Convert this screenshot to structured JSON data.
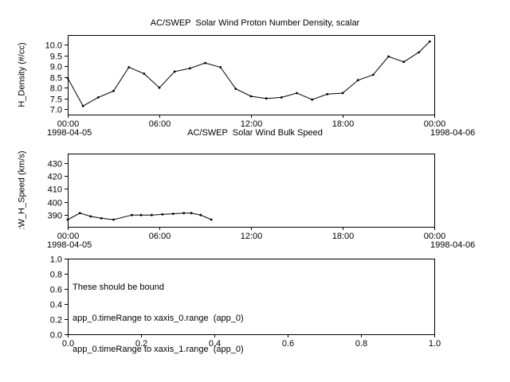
{
  "figure": {
    "bg": "#ffffff",
    "fg": "#000000"
  },
  "chart_data": [
    {
      "type": "line",
      "title": "AC/SWEP  Solar Wind Proton Number Density, scalar",
      "ylabel": "H_Density (#/cc)",
      "xlabel_left": "1998-04-05",
      "xlabel_right": "1998-04-06",
      "xlim": [
        0,
        24
      ],
      "ylim": [
        6.75,
        10.45
      ],
      "grid": false,
      "marker": "dot",
      "xticks": {
        "values": [
          0,
          6,
          12,
          18,
          24
        ],
        "labels": [
          "00:00",
          "06:00",
          "12:00",
          "18:00",
          "00:00"
        ]
      },
      "yticks": {
        "values": [
          7.0,
          7.5,
          8.0,
          8.5,
          9.0,
          9.5,
          10.0
        ],
        "labels": [
          "7.0",
          "7.5",
          "8.0",
          "8.5",
          "9.0",
          "9.5",
          "10.0"
        ]
      },
      "x": [
        0,
        1,
        2,
        3,
        4,
        5,
        6,
        7,
        8,
        9,
        10,
        11,
        12,
        13,
        14,
        15,
        16,
        17,
        18,
        19,
        20,
        21,
        22,
        23,
        23.7
      ],
      "values": [
        8.45,
        7.15,
        7.55,
        7.85,
        8.95,
        8.65,
        8.0,
        8.75,
        8.9,
        9.15,
        8.95,
        7.95,
        7.6,
        7.5,
        7.55,
        7.75,
        7.45,
        7.7,
        7.75,
        8.35,
        8.6,
        9.45,
        9.2,
        9.65,
        10.15
      ]
    },
    {
      "type": "line",
      "title": "AC/SWEP  Solar Wind Bulk Speed",
      "ylabel": ":W_H_Speed (km/s)",
      "xlabel_left": "1998-04-05",
      "xlabel_right": "1998-04-06",
      "xlim": [
        0,
        24
      ],
      "ylim": [
        381,
        437
      ],
      "grid": false,
      "marker": "dot",
      "xticks": {
        "values": [
          0,
          6,
          12,
          18,
          24
        ],
        "labels": [
          "00:00",
          "06:00",
          "12:00",
          "18:00",
          "00:00"
        ]
      },
      "yticks": {
        "values": [
          390,
          400,
          410,
          420,
          430
        ],
        "labels": [
          "390",
          "400",
          "410",
          "420",
          "430"
        ]
      },
      "x": [
        0,
        0.8,
        1.5,
        2.2,
        3.0,
        4.2,
        4.8,
        5.5,
        6.2,
        6.9,
        7.6,
        8.1,
        8.7,
        9.4
      ],
      "values": [
        386.5,
        391.5,
        389.0,
        387.5,
        386.5,
        390.0,
        390.0,
        390.0,
        390.5,
        391.0,
        391.5,
        391.5,
        390.0,
        386.5
      ]
    },
    {
      "type": "empty",
      "xlim": [
        0,
        1
      ],
      "ylim": [
        0,
        1
      ],
      "grid": false,
      "xticks": {
        "values": [
          0,
          0.2,
          0.4,
          0.6,
          0.8,
          1.0
        ],
        "labels": [
          "0.0",
          "0.2",
          "0.4",
          "0.6",
          "0.8",
          "1.0"
        ]
      },
      "yticks": {
        "values": [
          0,
          0.2,
          0.4,
          0.6,
          0.8,
          1.0
        ],
        "labels": [
          "0.0",
          "0.2",
          "0.4",
          "0.6",
          "0.8",
          "1.0"
        ]
      },
      "annotations": [
        "These should be bound",
        "app_0.timeRange to xaxis_0.range  (app_0)",
        "app_0.timeRange to xaxis_1.range  (app_0)"
      ]
    }
  ]
}
